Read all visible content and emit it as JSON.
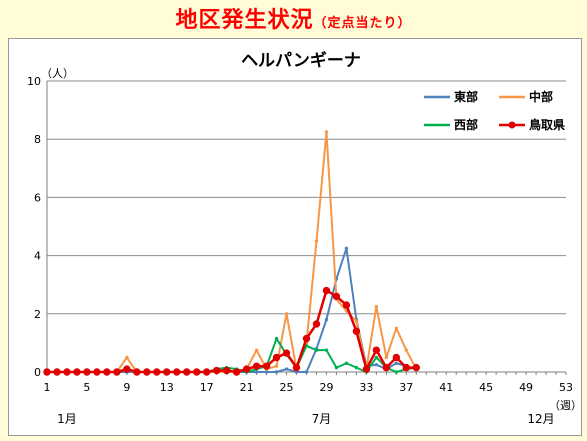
{
  "page": {
    "title": "地区発生状況",
    "subtitle": "（定点当たり）"
  },
  "chart_data": {
    "type": "line",
    "title": "ヘルパンギーナ",
    "y_unit_label": "（人）",
    "x_unit_label": "（週）",
    "ylim": [
      0,
      10
    ],
    "yticks": [
      0,
      2,
      4,
      6,
      8,
      10
    ],
    "xlim": [
      1,
      53
    ],
    "xticks": [
      1,
      5,
      9,
      13,
      17,
      21,
      25,
      29,
      33,
      37,
      41,
      45,
      49,
      53
    ],
    "month_labels": [
      {
        "label": "1月",
        "week": 3
      },
      {
        "label": "7月",
        "week": 28.5
      },
      {
        "label": "12月",
        "week": 50.5
      }
    ],
    "grid": "horizontal",
    "legend_position": "top-right",
    "weeks": [
      1,
      2,
      3,
      4,
      5,
      6,
      7,
      8,
      9,
      10,
      11,
      12,
      13,
      14,
      15,
      16,
      17,
      18,
      19,
      20,
      21,
      22,
      23,
      24,
      25,
      26,
      27,
      28,
      29,
      30,
      31,
      32,
      33,
      34,
      35,
      36,
      37,
      38
    ],
    "series": [
      {
        "name": "東部",
        "color": "#4f81bd",
        "values": [
          0,
          0,
          0,
          0,
          0,
          0,
          0,
          0,
          0,
          0,
          0,
          0,
          0,
          0,
          0,
          0,
          0,
          0,
          0,
          0,
          0,
          0,
          0,
          0,
          0.1,
          0,
          0,
          0.8,
          1.8,
          3.2,
          4.25,
          1.8,
          0.2,
          0.25,
          0.1,
          0.3,
          0.2,
          0.1
        ]
      },
      {
        "name": "中部",
        "color": "#f79646",
        "values": [
          0,
          0,
          0,
          0,
          0,
          0,
          0,
          0,
          0.5,
          0,
          0,
          0,
          0,
          0,
          0,
          0,
          0,
          0,
          0,
          0,
          0.1,
          0.75,
          0.1,
          0.2,
          2.0,
          0.1,
          1.0,
          4.5,
          8.25,
          2.5,
          2.1,
          1.75,
          0.1,
          2.25,
          0.5,
          1.5,
          0.75,
          0.1
        ]
      },
      {
        "name": "西部",
        "color": "#00b050",
        "values": [
          0,
          0,
          0,
          0,
          0,
          0,
          0,
          0,
          0.1,
          0,
          0,
          0,
          0,
          0,
          0,
          0,
          0,
          0.1,
          0.15,
          0.1,
          0,
          0.1,
          0.2,
          1.15,
          0.6,
          0.15,
          0.9,
          0.75,
          0.75,
          0.15,
          0.3,
          0.15,
          0,
          0.5,
          0.15,
          0,
          0.1,
          0.15
        ]
      },
      {
        "name": "鳥取県",
        "color": "#e00000",
        "marker": true,
        "values": [
          0,
          0,
          0,
          0,
          0,
          0,
          0,
          0,
          0.1,
          0,
          0,
          0,
          0,
          0,
          0,
          0,
          0,
          0.05,
          0.05,
          0,
          0.1,
          0.2,
          0.2,
          0.5,
          0.65,
          0.15,
          1.15,
          1.65,
          2.8,
          2.6,
          2.3,
          1.4,
          0.1,
          0.75,
          0.15,
          0.5,
          0.15,
          0.15
        ]
      }
    ]
  }
}
